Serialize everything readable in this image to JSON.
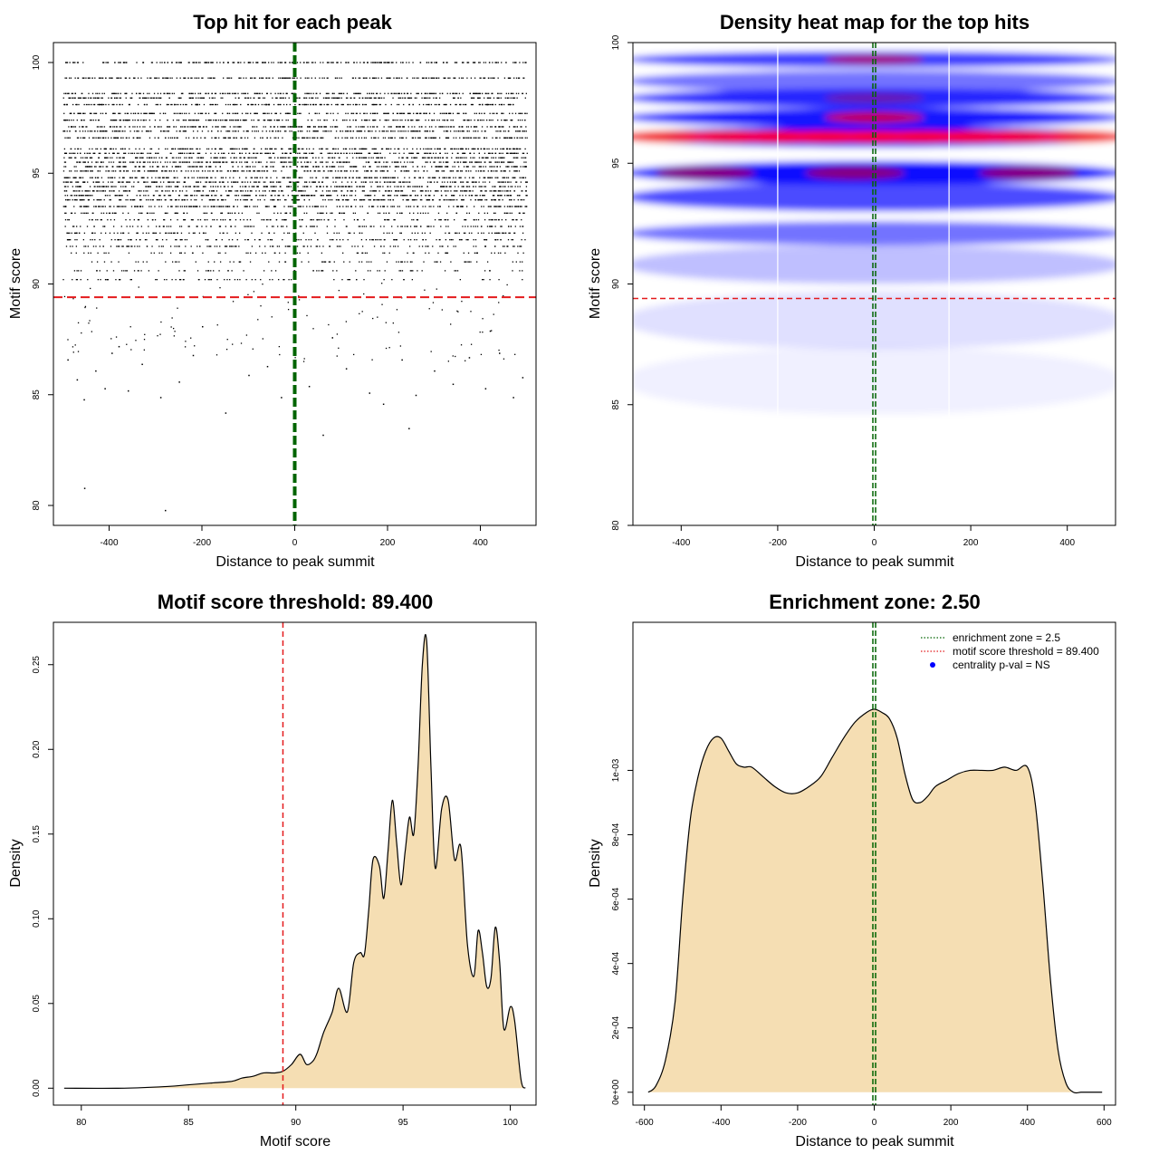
{
  "colors": {
    "threshold_line": "#e41a1c",
    "center_line": "#006400",
    "density_fill": "#f5deb3",
    "heat_low": "#ffffff",
    "heat_mid": "#0000ff",
    "heat_high": "#ff0000",
    "legend_dot": "#0000ff"
  },
  "chart_data": [
    {
      "id": "scatter",
      "type": "scatter",
      "title": "Top hit for each peak",
      "xlabel": "Distance to peak summit",
      "ylabel": "Motif score",
      "xlim": [
        -520,
        520
      ],
      "ylim": [
        79.1,
        100.9
      ],
      "xticks": [
        -400,
        -200,
        0,
        200,
        400
      ],
      "yticks": [
        80,
        85,
        90,
        95,
        100
      ],
      "threshold": 89.4,
      "center": 0,
      "score_levels": [
        100,
        99.3,
        98.6,
        98.4,
        98.1,
        97.7,
        97.4,
        97.1,
        96.9,
        96.6,
        96.1,
        95.9,
        95.7,
        95.5,
        95.3,
        95.1,
        94.8,
        94.6,
        94.4,
        94.2,
        94.0,
        93.8,
        93.5,
        93.2,
        92.9,
        92.6,
        92.3,
        92.0,
        91.7,
        91.4,
        91.0,
        90.6,
        90.2
      ],
      "outlier_points": [
        {
          "x": -470,
          "y": 85.7
        },
        {
          "x": -455,
          "y": 84.8
        },
        {
          "x": -430,
          "y": 86.1
        },
        {
          "x": -410,
          "y": 85.3
        },
        {
          "x": -395,
          "y": 86.9
        },
        {
          "x": -360,
          "y": 85.2
        },
        {
          "x": -330,
          "y": 86.4
        },
        {
          "x": -290,
          "y": 84.9
        },
        {
          "x": -250,
          "y": 85.6
        },
        {
          "x": -220,
          "y": 86.8
        },
        {
          "x": -150,
          "y": 84.2
        },
        {
          "x": -100,
          "y": 85.9
        },
        {
          "x": -60,
          "y": 86.3
        },
        {
          "x": -30,
          "y": 84.9
        },
        {
          "x": 30,
          "y": 85.4
        },
        {
          "x": 60,
          "y": 83.2
        },
        {
          "x": 110,
          "y": 86.2
        },
        {
          "x": 160,
          "y": 85.1
        },
        {
          "x": 190,
          "y": 84.6
        },
        {
          "x": 230,
          "y": 86.6
        },
        {
          "x": 260,
          "y": 85.0
        },
        {
          "x": 300,
          "y": 86.1
        },
        {
          "x": 340,
          "y": 85.5
        },
        {
          "x": 375,
          "y": 86.7
        },
        {
          "x": 410,
          "y": 85.3
        },
        {
          "x": 440,
          "y": 86.9
        },
        {
          "x": 470,
          "y": 84.9
        },
        {
          "x": 490,
          "y": 85.8
        },
        {
          "x": -490,
          "y": 86.6
        },
        {
          "x": 245,
          "y": 83.5
        },
        {
          "x": -454,
          "y": 80.8
        },
        {
          "x": -280,
          "y": 79.8
        },
        {
          "x": -200,
          "y": 88.1
        },
        {
          "x": 80,
          "y": 87.6
        },
        {
          "x": -380,
          "y": 87.2
        },
        {
          "x": 420,
          "y": 87.9
        }
      ]
    },
    {
      "id": "heatmap",
      "type": "heatmap",
      "title": "Density heat map for the top hits",
      "xlabel": "Distance to peak summit",
      "ylabel": "Motif score",
      "xlim": [
        -500,
        500
      ],
      "ylim": [
        80,
        100
      ],
      "xticks": [
        -400,
        -200,
        0,
        200,
        400
      ],
      "yticks": [
        80,
        85,
        90,
        95,
        100
      ],
      "threshold": 89.4,
      "center": 0,
      "white_vlines": [
        -200,
        155
      ],
      "bands": [
        {
          "y": 99.3,
          "intensity": 0.75,
          "width": 0.35,
          "hot_x": [
            0
          ],
          "hot": 0.55
        },
        {
          "y": 98.4,
          "intensity": 0.55,
          "width": 0.45,
          "hot_x": [],
          "hot": 0
        },
        {
          "y": 97.7,
          "intensity": 0.85,
          "width": 0.4,
          "hot_x": [
            0
          ],
          "hot": 0.3
        },
        {
          "y": 96.9,
          "intensity": 0.9,
          "width": 0.4,
          "hot_x": [
            0
          ],
          "hot": 0.75
        },
        {
          "y": 96.1,
          "intensity": 1.0,
          "width": 0.45,
          "hot_x": [
            -420,
            -300,
            -200,
            -100,
            0,
            100,
            200,
            300,
            420
          ],
          "hot": 0.95
        },
        {
          "y": 94.6,
          "intensity": 0.95,
          "width": 0.5,
          "hot_x": [
            -350,
            -40,
            320
          ],
          "hot": 0.5
        },
        {
          "y": 93.6,
          "intensity": 0.7,
          "width": 0.6,
          "hot_x": [],
          "hot": 0
        },
        {
          "y": 92.1,
          "intensity": 0.55,
          "width": 0.5,
          "hot_x": [],
          "hot": 0
        },
        {
          "y": 90.8,
          "intensity": 0.25,
          "width": 0.8,
          "hot_x": [],
          "hot": 0
        },
        {
          "y": 88.5,
          "intensity": 0.12,
          "width": 1.2,
          "hot_x": [],
          "hot": 0
        },
        {
          "y": 86.0,
          "intensity": 0.06,
          "width": 1.4,
          "hot_x": [],
          "hot": 0
        }
      ]
    },
    {
      "id": "score_density",
      "type": "area",
      "title": "Motif score threshold: 89.400",
      "xlabel": "Motif score",
      "ylabel": "Density",
      "xlim": [
        78.7,
        101.2
      ],
      "ylim": [
        -0.01,
        0.275
      ],
      "xticks": [
        80,
        85,
        90,
        95,
        100
      ],
      "yticks": [
        0.0,
        0.05,
        0.1,
        0.15,
        0.2,
        0.25
      ],
      "ytick_labels": [
        "0.00",
        "0.05",
        "0.10",
        "0.15",
        "0.20",
        "0.25"
      ],
      "threshold": 89.4,
      "x": [
        79.2,
        82.0,
        84.0,
        85.0,
        86.0,
        87.0,
        87.5,
        88.0,
        88.5,
        89.0,
        89.4,
        89.8,
        90.2,
        90.5,
        90.8,
        91.0,
        91.3,
        91.7,
        92.0,
        92.4,
        92.7,
        93.0,
        93.2,
        93.4,
        93.6,
        93.9,
        94.1,
        94.3,
        94.5,
        94.7,
        94.9,
        95.1,
        95.3,
        95.5,
        95.7,
        95.9,
        96.1,
        96.3,
        96.5,
        96.8,
        97.1,
        97.4,
        97.7,
        98.0,
        98.3,
        98.5,
        98.7,
        98.9,
        99.1,
        99.3,
        99.5,
        99.7,
        100.0,
        100.2,
        100.5,
        100.7
      ],
      "values": [
        0.0,
        0.0,
        0.001,
        0.002,
        0.003,
        0.004,
        0.006,
        0.007,
        0.009,
        0.009,
        0.01,
        0.014,
        0.02,
        0.014,
        0.016,
        0.021,
        0.033,
        0.045,
        0.059,
        0.045,
        0.074,
        0.08,
        0.079,
        0.105,
        0.135,
        0.131,
        0.112,
        0.14,
        0.17,
        0.145,
        0.12,
        0.14,
        0.16,
        0.15,
        0.19,
        0.25,
        0.264,
        0.19,
        0.13,
        0.165,
        0.17,
        0.135,
        0.142,
        0.085,
        0.066,
        0.093,
        0.08,
        0.06,
        0.065,
        0.095,
        0.075,
        0.035,
        0.048,
        0.04,
        0.005,
        0.0
      ]
    },
    {
      "id": "distance_density",
      "type": "area",
      "title": "Enrichment zone: 2.50",
      "xlabel": "Distance to peak summit",
      "ylabel": "Density",
      "xlim": [
        -630,
        630
      ],
      "ylim": [
        -4e-05,
        0.00146
      ],
      "xticks": [
        -600,
        -400,
        -200,
        0,
        200,
        400,
        600
      ],
      "yticks": [
        0,
        0.0002,
        0.0004,
        0.0006,
        0.0008,
        0.001
      ],
      "ytick_labels": [
        "0e+00",
        "2e-04",
        "4e-04",
        "6e-04",
        "8e-04",
        "1e-03"
      ],
      "center": 0,
      "x": [
        -590,
        -570,
        -545,
        -520,
        -500,
        -480,
        -460,
        -440,
        -420,
        -400,
        -380,
        -360,
        -340,
        -320,
        -290,
        -260,
        -230,
        -200,
        -170,
        -140,
        -110,
        -80,
        -50,
        -20,
        0,
        20,
        40,
        60,
        80,
        100,
        120,
        140,
        160,
        190,
        220,
        250,
        280,
        310,
        340,
        370,
        400,
        420,
        440,
        460,
        480,
        500,
        520,
        540,
        560,
        580,
        595
      ],
      "values": [
        0,
        2e-05,
        0.0001,
        0.00028,
        0.0006,
        0.00085,
        0.00098,
        0.00106,
        0.0011,
        0.0011,
        0.00106,
        0.00102,
        0.00101,
        0.00101,
        0.00098,
        0.00095,
        0.00093,
        0.00093,
        0.00095,
        0.00098,
        0.00104,
        0.0011,
        0.00115,
        0.00118,
        0.00119,
        0.00118,
        0.00116,
        0.0011,
        0.00099,
        0.00091,
        0.0009,
        0.00092,
        0.00095,
        0.00097,
        0.00099,
        0.001,
        0.001,
        0.001,
        0.00101,
        0.001,
        0.00101,
        0.0009,
        0.00065,
        0.00035,
        0.00013,
        3e-05,
        0.0,
        0.0,
        0.0,
        0.0,
        0.0
      ],
      "legend": [
        {
          "label": "enrichment zone = 2.5",
          "kind": "dotted-line",
          "color": "#006400"
        },
        {
          "label": "motif score threshold = 89.400",
          "kind": "dotted-line",
          "color": "#e41a1c"
        },
        {
          "label": "centrality p-val = NS",
          "kind": "point",
          "color": "#0000ff"
        }
      ]
    }
  ]
}
